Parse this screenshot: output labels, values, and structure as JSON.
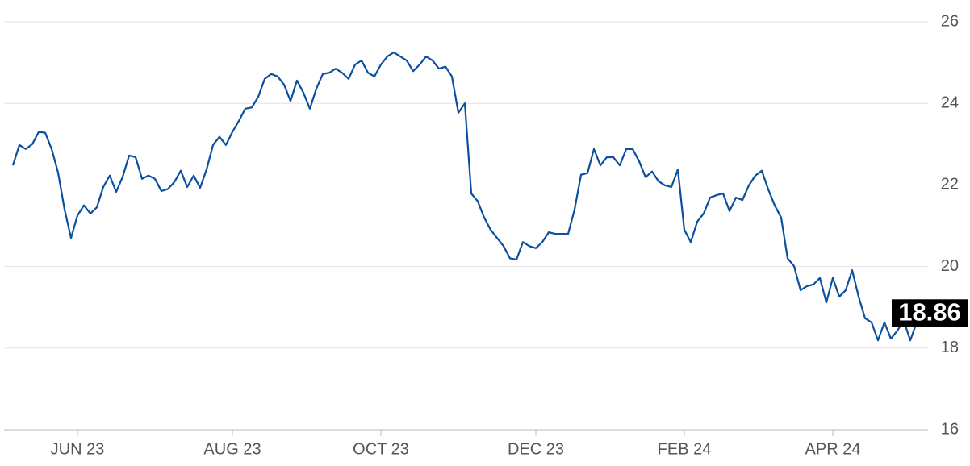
{
  "chart_data": {
    "type": "line",
    "color": "#0b4f9f",
    "categories": [
      null,
      null,
      null,
      null,
      null,
      null,
      null,
      null,
      null,
      null,
      "JUN 23",
      null,
      null,
      null,
      null,
      null,
      null,
      null,
      null,
      null,
      null,
      null,
      null,
      null,
      null,
      null,
      null,
      null,
      null,
      null,
      null,
      null,
      null,
      null,
      "AUG 23",
      null,
      null,
      null,
      null,
      null,
      null,
      null,
      null,
      null,
      null,
      null,
      null,
      null,
      null,
      null,
      null,
      null,
      null,
      null,
      null,
      null,
      null,
      "OCT 23",
      null,
      null,
      null,
      null,
      null,
      null,
      null,
      null,
      null,
      null,
      null,
      null,
      null,
      null,
      null,
      null,
      null,
      null,
      null,
      null,
      null,
      null,
      null,
      "DEC 23",
      null,
      null,
      null,
      null,
      null,
      null,
      null,
      null,
      null,
      null,
      null,
      null,
      null,
      null,
      null,
      null,
      null,
      null,
      null,
      null,
      null,
      null,
      "FEB 24",
      null,
      null,
      null,
      null,
      null,
      null,
      null,
      null,
      null,
      null,
      null,
      null,
      null,
      null,
      null,
      null,
      null,
      null,
      null,
      null,
      null,
      null,
      "APR 24",
      null,
      null,
      null,
      null,
      null,
      null,
      null,
      null,
      null,
      null,
      null,
      null,
      null,
      null
    ],
    "values": [
      22.48,
      22.98,
      22.88,
      23.0,
      23.3,
      23.28,
      22.88,
      22.3,
      21.4,
      20.7,
      21.25,
      21.5,
      21.3,
      21.45,
      21.95,
      22.23,
      21.83,
      22.2,
      22.72,
      22.68,
      22.15,
      22.23,
      22.15,
      21.85,
      21.9,
      22.07,
      22.35,
      21.95,
      22.23,
      21.93,
      22.38,
      22.98,
      23.18,
      22.98,
      23.3,
      23.57,
      23.87,
      23.9,
      24.16,
      24.6,
      24.72,
      24.66,
      24.46,
      24.06,
      24.56,
      24.26,
      23.87,
      24.36,
      24.72,
      24.75,
      24.85,
      24.75,
      24.6,
      24.95,
      25.05,
      24.75,
      24.66,
      24.95,
      25.15,
      25.25,
      25.15,
      25.05,
      24.79,
      24.95,
      25.15,
      25.05,
      24.85,
      24.9,
      24.66,
      23.77,
      24.0,
      21.79,
      21.6,
      21.2,
      20.9,
      20.7,
      20.5,
      20.2,
      20.17,
      20.6,
      20.5,
      20.45,
      20.6,
      20.84,
      20.8,
      20.8,
      20.8,
      21.4,
      22.25,
      22.29,
      22.88,
      22.48,
      22.68,
      22.68,
      22.48,
      22.88,
      22.88,
      22.58,
      22.19,
      22.33,
      22.09,
      21.99,
      21.95,
      22.38,
      20.9,
      20.6,
      21.1,
      21.3,
      21.69,
      21.75,
      21.79,
      21.36,
      21.69,
      21.63,
      21.99,
      22.23,
      22.35,
      21.89,
      21.5,
      21.2,
      20.2,
      20.01,
      19.42,
      19.52,
      19.56,
      19.72,
      19.12,
      19.72,
      19.26,
      19.42,
      19.91,
      19.26,
      18.73,
      18.63,
      18.19,
      18.63,
      18.23,
      18.43,
      18.67,
      18.19,
      18.63,
      18.86
    ],
    "ylim": [
      16,
      26
    ],
    "yticks": [
      16,
      18,
      20,
      22,
      24,
      26
    ],
    "grid": true
  }
}
